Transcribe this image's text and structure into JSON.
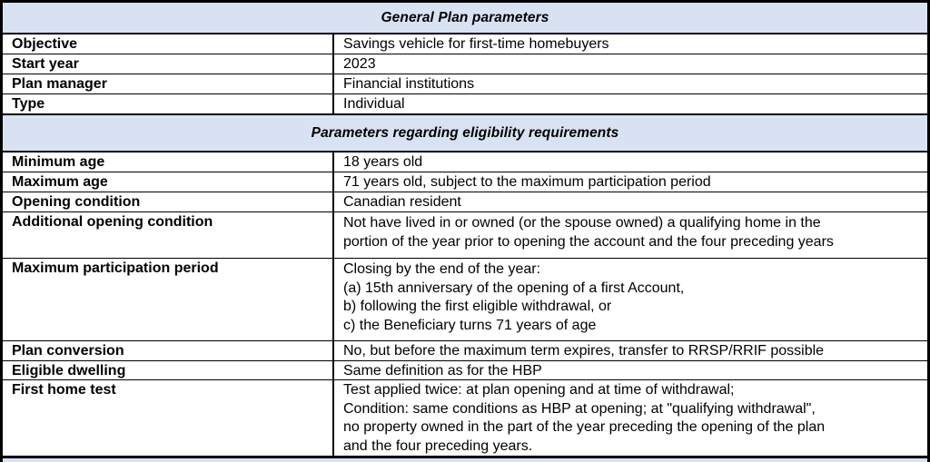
{
  "table": {
    "colors": {
      "section_header_bg": "#d9e2f3",
      "border": "#000000",
      "row_bg": "#ffffff",
      "text": "#000000"
    },
    "sections": [
      {
        "header": "General Plan parameters",
        "rows": [
          {
            "label": "Objective",
            "value": "Savings vehicle for first-time homebuyers"
          },
          {
            "label": "Start year",
            "value": "2023"
          },
          {
            "label": "Plan manager",
            "value": "Financial institutions"
          },
          {
            "label": "Type",
            "value": "Individual"
          }
        ]
      },
      {
        "header": "Parameters regarding eligibility requirements",
        "rows": [
          {
            "label": "Minimum age",
            "value": "18 years old"
          },
          {
            "label": "Maximum age",
            "value": "71 years old, subject to the maximum participation period"
          },
          {
            "label": "Opening condition",
            "value": "Canadian resident"
          },
          {
            "label": "Additional opening condition",
            "lines": [
              "Not have lived in or owned (or the spouse owned) a qualifying home in the",
              "portion of the year prior to opening the account and the four preceding years"
            ]
          },
          {
            "label": "Maximum participation period",
            "lines": [
              "Closing by the end of the year:",
              "(a) 15th anniversary of the opening of a first Account,",
              "b) following the first eligible withdrawal, or",
              "c) the Beneficiary turns 71 years of age"
            ]
          },
          {
            "label": "Plan conversion",
            "value": "No, but before the maximum term expires, transfer to RRSP/RRIF possible"
          },
          {
            "label": "Eligible dwelling",
            "value": "Same definition as for the HBP"
          },
          {
            "label": "First home test",
            "lines": [
              "Test applied twice: at plan opening and at time of withdrawal;",
              "Condition: same conditions as HBP at opening; at \"qualifying withdrawal\",",
              "no property owned in the part of the year preceding the opening of the plan",
              "and the four preceding years."
            ]
          }
        ]
      }
    ]
  }
}
